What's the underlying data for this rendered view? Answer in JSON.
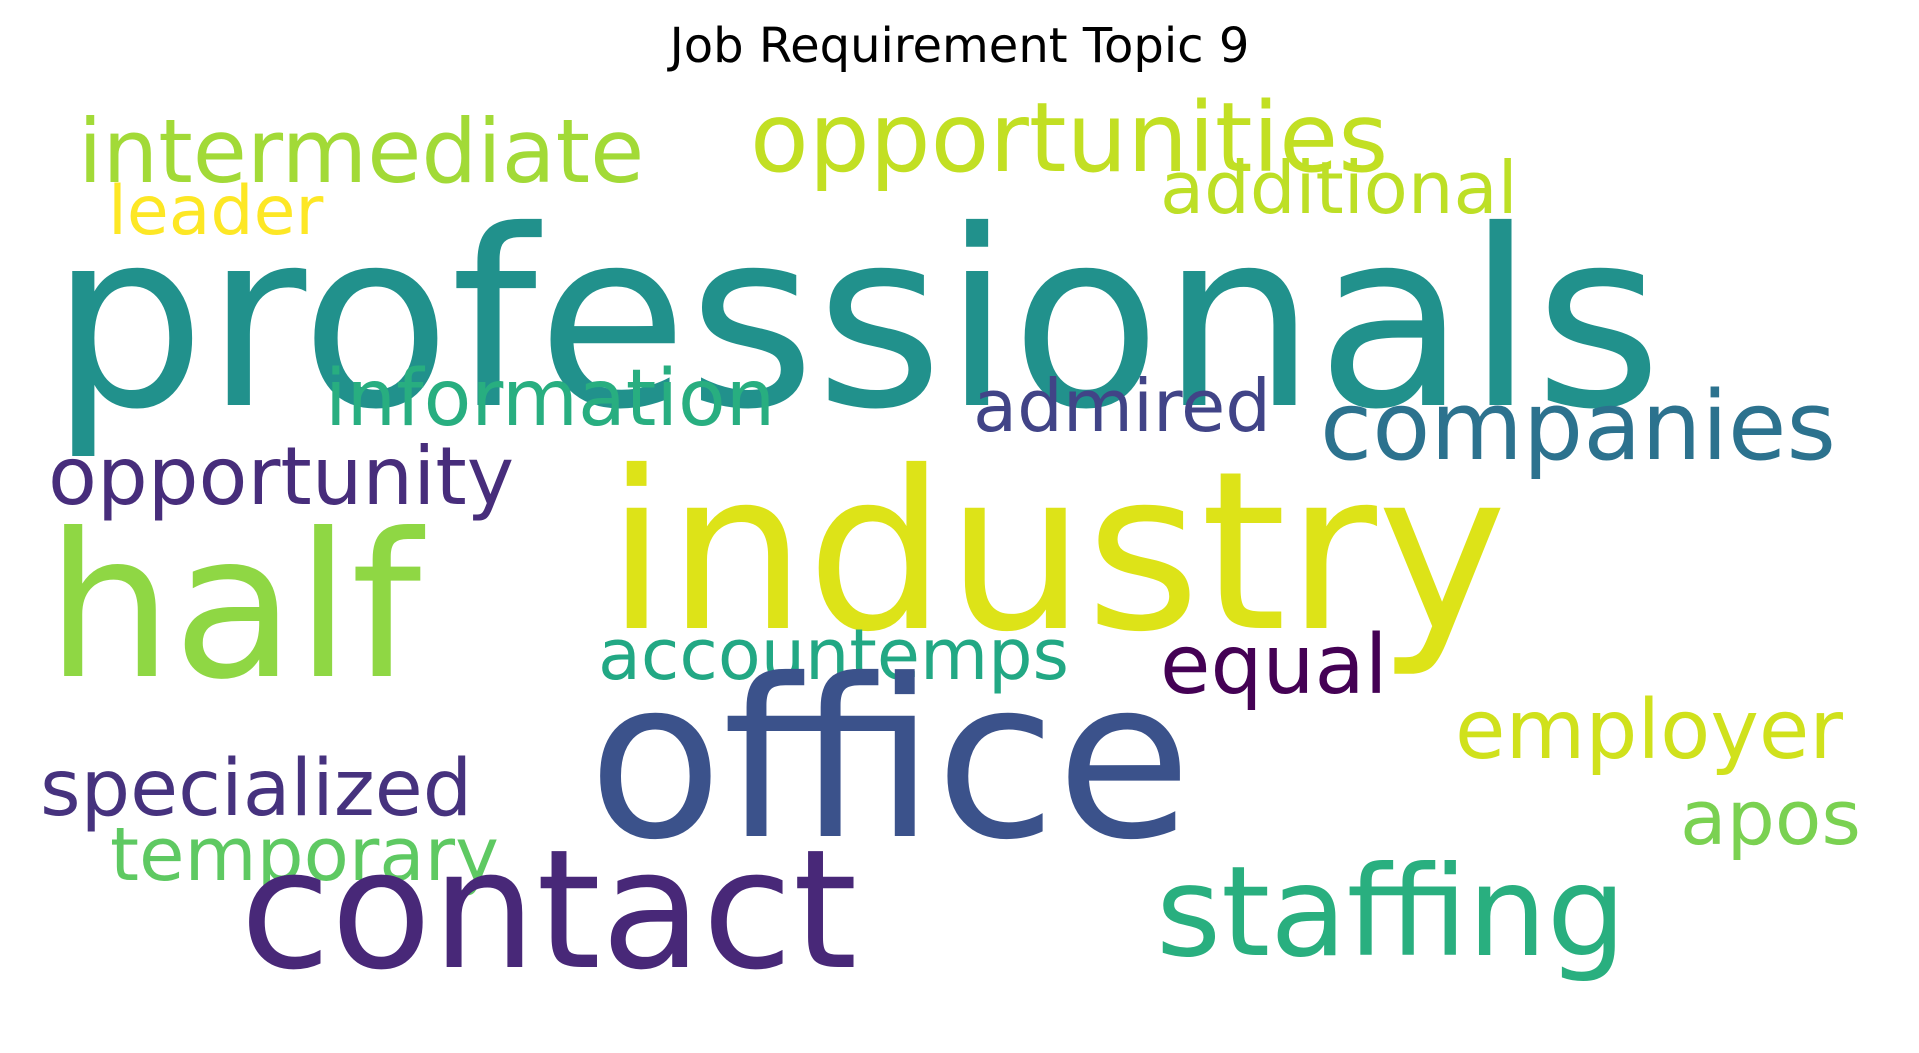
{
  "title": "Job Requirement Topic 9",
  "words": {
    "professionals": {
      "text": "professionals",
      "color": "#21918c"
    },
    "industry": {
      "text": "industry",
      "color": "#dde318"
    },
    "office": {
      "text": "office",
      "color": "#3b528b"
    },
    "half": {
      "text": "half",
      "color": "#8fd744"
    },
    "contact": {
      "text": "contact",
      "color": "#482878"
    },
    "staffing": {
      "text": "staffing",
      "color": "#29af7f"
    },
    "opportunities": {
      "text": "opportunities",
      "color": "#c2df23"
    },
    "intermediate": {
      "text": "intermediate",
      "color": "#a2da37"
    },
    "companies": {
      "text": "companies",
      "color": "#2c728e"
    },
    "opportunity": {
      "text": "opportunity",
      "color": "#472d7b"
    },
    "information": {
      "text": "information",
      "color": "#28ae80"
    },
    "admired": {
      "text": "admired",
      "color": "#414487"
    },
    "additional": {
      "text": "additional",
      "color": "#bddf26"
    },
    "leader": {
      "text": "leader",
      "color": "#fde725"
    },
    "accountemps": {
      "text": "accountemps",
      "color": "#22a884"
    },
    "equal": {
      "text": "equal",
      "color": "#440154"
    },
    "employer": {
      "text": "employer",
      "color": "#d0e11c"
    },
    "specialized": {
      "text": "specialized",
      "color": "#46327e"
    },
    "temporary": {
      "text": "temporary",
      "color": "#5ec962"
    },
    "apos": {
      "text": "apos",
      "color": "#7ad151"
    }
  }
}
